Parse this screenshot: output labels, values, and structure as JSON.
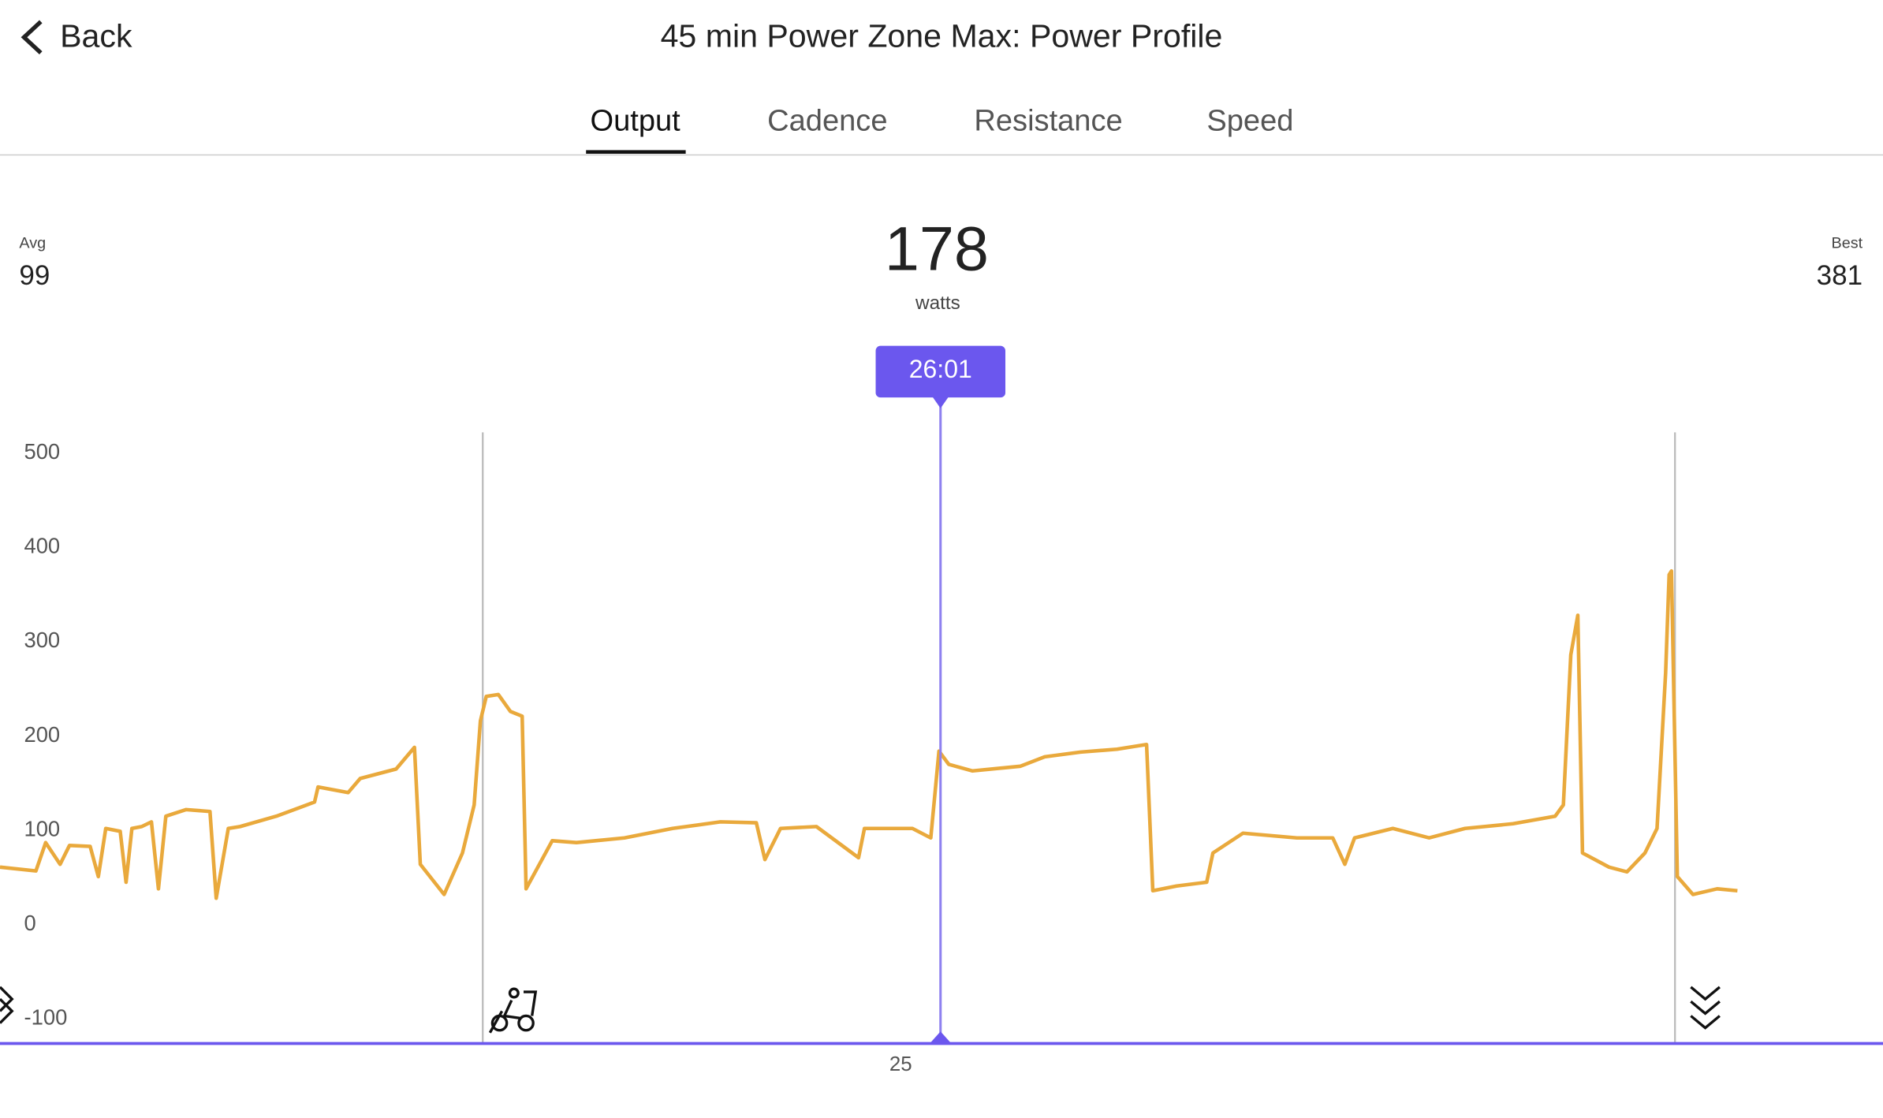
{
  "header": {
    "back": "Back",
    "title": "45 min Power Zone Max: Power Profile"
  },
  "tabs": [
    "Output",
    "Cadence",
    "Resistance",
    "Speed"
  ],
  "stats": {
    "avg_label": "Avg",
    "avg": 99,
    "current": 178,
    "unit": "watts",
    "best_label": "Best",
    "best": 381
  },
  "chart_data": {
    "type": "line",
    "xlim": [
      1.92,
      50.17
    ],
    "ylim": [
      -126,
      522
    ],
    "xticks": [
      25
    ],
    "yticks": [
      -100,
      0,
      100,
      200,
      300,
      400,
      500
    ],
    "cursor": {
      "value": 26.02,
      "label": "26:01"
    },
    "section_markers": [
      14.29,
      44.84
    ],
    "series": [
      {
        "color": "#e9a93c",
        "x": [
          1.92,
          2.84,
          3.09,
          3.46,
          3.7,
          4.23,
          4.44,
          4.63,
          5,
          5.15,
          5.3,
          5.55,
          5.8,
          5.98,
          6.17,
          6.69,
          7.3,
          7.46,
          7.77,
          8.07,
          9,
          9.98,
          10.07,
          10.84,
          11.15,
          12.07,
          12.54,
          12.69,
          13.3,
          13.77,
          14.07,
          14.23,
          14.38,
          14.69,
          15,
          15.3,
          15.4,
          16.07,
          16.69,
          17.92,
          19.15,
          20.38,
          21.3,
          21.52,
          21.92,
          22.84,
          23.92,
          24.07,
          25.3,
          25.77,
          25.98,
          26.23,
          26.84,
          28.07,
          28.69,
          29.61,
          30.54,
          31.3,
          31.46,
          32.07,
          32.84,
          33,
          33.77,
          35.15,
          36.07,
          36.38,
          36.63,
          37.61,
          38.54,
          39.46,
          40.69,
          41.77,
          41.98,
          42.17,
          42.35,
          42.47,
          43.15,
          43.61,
          44.07,
          44.38,
          44.6,
          44.69,
          44.75,
          44.9,
          45.3,
          45.92,
          46.44
        ],
        "values": [
          61,
          57,
          87,
          64,
          84,
          83,
          51,
          102,
          99,
          45,
          102,
          104,
          109,
          38,
          115,
          122,
          120,
          28,
          102,
          104,
          115,
          130,
          146,
          140,
          155,
          165,
          188,
          64,
          32,
          76,
          127,
          216,
          242,
          244,
          226,
          221,
          38,
          89,
          87,
          92,
          102,
          109,
          108,
          69,
          102,
          104,
          71,
          102,
          102,
          92,
          184,
          170,
          163,
          168,
          178,
          183,
          186,
          191,
          36,
          41,
          45,
          76,
          97,
          92,
          92,
          64,
          92,
          102,
          92,
          102,
          107,
          115,
          127,
          286,
          328,
          76,
          61,
          56,
          76,
          102,
          267,
          371,
          375,
          51,
          32,
          38,
          36
        ]
      }
    ]
  }
}
